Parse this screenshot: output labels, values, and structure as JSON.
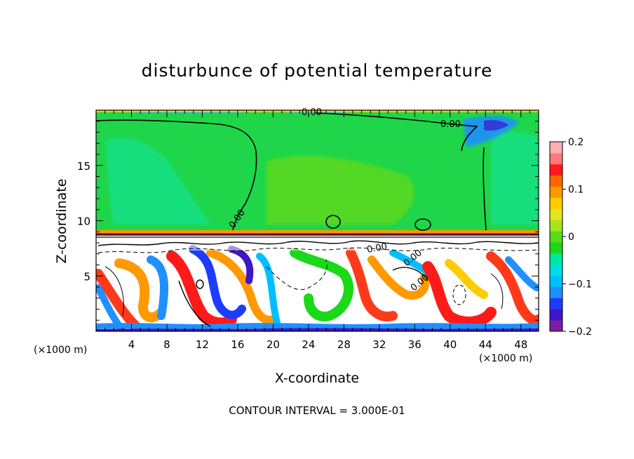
{
  "chart_data": {
    "type": "heatmap",
    "title": "disturbunce of potential temperature",
    "xlabel": "X-coordinate",
    "ylabel": "Z-coordinate",
    "x_unit": "(×1000 m)",
    "x_unit_right": "(×1000 m)",
    "xlim": [
      0,
      50
    ],
    "ylim": [
      0,
      20
    ],
    "x_ticks": [
      4,
      8,
      12,
      16,
      20,
      24,
      28,
      32,
      36,
      40,
      44,
      48
    ],
    "y_ticks": [
      5,
      10,
      15
    ],
    "colorbar": {
      "range": [
        -0.2,
        0.2
      ],
      "tick_labels": [
        "0.2",
        "0.1",
        "0",
        "−0.1",
        "−0.2"
      ],
      "tick_values": [
        0.2,
        0.1,
        0,
        -0.1,
        -0.2
      ],
      "colors": [
        "#7b1fa2",
        "#3f16c8",
        "#1e3cff",
        "#1e90ff",
        "#00bfff",
        "#00e0e0",
        "#00e8a0",
        "#19d919",
        "#5bd91b",
        "#a5e61b",
        "#e6e61b",
        "#ffcc00",
        "#ff9900",
        "#ff6600",
        "#ff1a1a",
        "#ff7a7a",
        "#ffb0b0"
      ]
    },
    "contour_labels": [
      "0.00",
      "0.00",
      "0.00",
      "0.00",
      "0.00",
      "0.00"
    ],
    "footnote": "CONTOUR INTERVAL = 3.000E-01"
  }
}
